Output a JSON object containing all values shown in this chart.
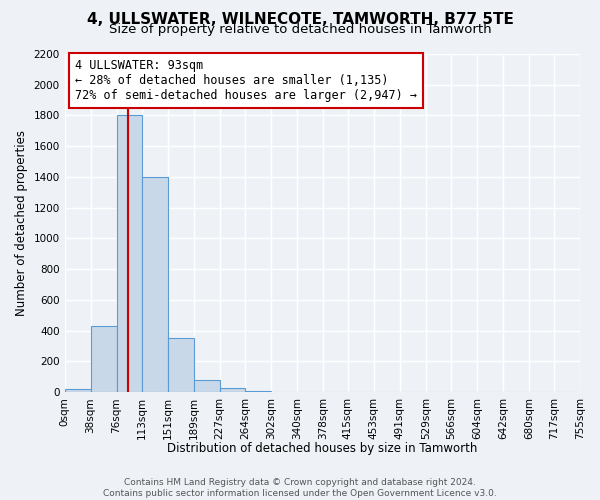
{
  "title": "4, ULLSWATER, WILNECOTE, TAMWORTH, B77 5TE",
  "subtitle": "Size of property relative to detached houses in Tamworth",
  "xlabel": "Distribution of detached houses by size in Tamworth",
  "ylabel": "Number of detached properties",
  "bin_edges": [
    0,
    38,
    76,
    113,
    151,
    189,
    227,
    264,
    302,
    340,
    378,
    415,
    453,
    491,
    529,
    566,
    604,
    642,
    680,
    717,
    755
  ],
  "bin_counts": [
    20,
    430,
    1800,
    1400,
    350,
    80,
    25,
    5,
    0,
    0,
    0,
    0,
    0,
    0,
    0,
    0,
    0,
    0,
    0,
    0
  ],
  "bar_color": "#c8d8e8",
  "bar_edge_color": "#5b9bd5",
  "red_line_x": 93,
  "annotation_title": "4 ULLSWATER: 93sqm",
  "annotation_line1": "← 28% of detached houses are smaller (1,135)",
  "annotation_line2": "72% of semi-detached houses are larger (2,947) →",
  "annotation_box_color": "#ffffff",
  "annotation_box_edge": "#cc0000",
  "red_line_color": "#cc0000",
  "ylim": [
    0,
    2200
  ],
  "yticks": [
    0,
    200,
    400,
    600,
    800,
    1000,
    1200,
    1400,
    1600,
    1800,
    2000,
    2200
  ],
  "xtick_labels": [
    "0sqm",
    "38sqm",
    "76sqm",
    "113sqm",
    "151sqm",
    "189sqm",
    "227sqm",
    "264sqm",
    "302sqm",
    "340sqm",
    "378sqm",
    "415sqm",
    "453sqm",
    "491sqm",
    "529sqm",
    "566sqm",
    "604sqm",
    "642sqm",
    "680sqm",
    "717sqm",
    "755sqm"
  ],
  "footer_line1": "Contains HM Land Registry data © Crown copyright and database right 2024.",
  "footer_line2": "Contains public sector information licensed under the Open Government Licence v3.0.",
  "background_color": "#eef2f7",
  "grid_color": "#ffffff",
  "title_fontsize": 11,
  "subtitle_fontsize": 9.5,
  "axis_label_fontsize": 8.5,
  "tick_fontsize": 7.5,
  "annotation_fontsize": 8.5,
  "footer_fontsize": 6.5
}
